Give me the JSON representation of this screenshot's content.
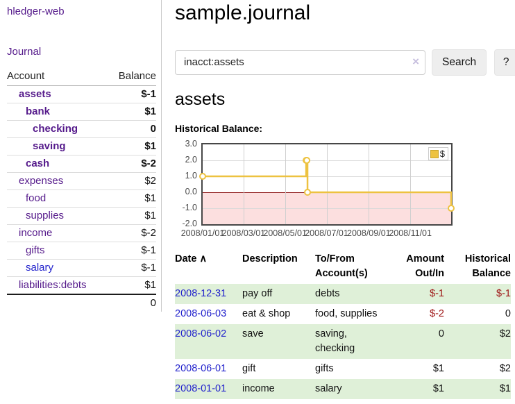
{
  "app": {
    "brand": "hledger-web",
    "nav_journal": "Journal"
  },
  "sidebar": {
    "table_headers": {
      "account": "Account",
      "balance": "Balance"
    },
    "accounts": [
      {
        "name": "assets",
        "level": 1,
        "bold": true,
        "balance": "$-1"
      },
      {
        "name": "bank",
        "level": 2,
        "bold": true,
        "balance": "$1"
      },
      {
        "name": "checking",
        "level": 3,
        "bold": true,
        "balance": "0"
      },
      {
        "name": "saving",
        "level": 3,
        "bold": true,
        "balance": "$1"
      },
      {
        "name": "cash",
        "level": 2,
        "bold": true,
        "balance": "$-2"
      },
      {
        "name": "expenses",
        "level": 1,
        "bold": false,
        "balance": "$2"
      },
      {
        "name": "food",
        "level": 2,
        "bold": false,
        "balance": "$1"
      },
      {
        "name": "supplies",
        "level": 2,
        "bold": false,
        "balance": "$1"
      },
      {
        "name": "income",
        "level": 1,
        "bold": false,
        "balance": "$-2"
      },
      {
        "name": "gifts",
        "level": 2,
        "bold": false,
        "balance": "$-1"
      },
      {
        "name": "salary",
        "level": 2,
        "bold": false,
        "balance": "$-1",
        "unvisited": true
      },
      {
        "name": "liabilities:debts",
        "level": 1,
        "bold": false,
        "balance": "$1"
      }
    ],
    "total": "0"
  },
  "header": {
    "title": "sample.journal"
  },
  "search": {
    "value": "inacct:assets",
    "clear_icon": "×",
    "button": "Search",
    "help_button": "?"
  },
  "account_page": {
    "heading": "assets",
    "chart_label": "Historical Balance:"
  },
  "chart_data": {
    "type": "line",
    "step": true,
    "title": "Historical Balance",
    "series": [
      {
        "name": "$",
        "color": "#edc240",
        "points": [
          [
            "2008-01-01",
            1
          ],
          [
            "2008-06-01",
            2
          ],
          [
            "2008-06-02",
            2
          ],
          [
            "2008-06-03",
            0
          ],
          [
            "2008-12-31",
            -1
          ]
        ]
      }
    ],
    "x_range": [
      "2008-01-01",
      "2008-12-31"
    ],
    "ylim": [
      -2,
      3
    ],
    "y_ticks": [
      "3.0",
      "2.0",
      "1.0",
      "0.0",
      "-1.0",
      "-2.0"
    ],
    "x_ticks": [
      {
        "date": "2008-01-01",
        "label": "2008/01/01"
      },
      {
        "date": "2008-03-01",
        "label": "2008/03/01"
      },
      {
        "date": "2008-05-01",
        "label": "2008/05/01"
      },
      {
        "date": "2008-07-01",
        "label": "2008/07/01"
      },
      {
        "date": "2008-09-01",
        "label": "2008/09/01"
      },
      {
        "date": "2008-11-01",
        "label": "2008/11/01"
      }
    ],
    "legend": {
      "label": "$",
      "position": "top-right"
    },
    "grid": true,
    "negative_region_color": "#fcdfdf",
    "zero_line_color": "#8b1515"
  },
  "register": {
    "headers": [
      "Date",
      "Description",
      "To/From Account(s)",
      "Amount Out/In",
      "Historical Balance"
    ],
    "sort_icon": "∧",
    "rows": [
      {
        "date": "2008-12-31",
        "description": "pay off",
        "accounts": "debts",
        "amount": "$-1",
        "balance": "$-1"
      },
      {
        "date": "2008-06-03",
        "description": "eat & shop",
        "accounts": "food, supplies",
        "amount": "$-2",
        "balance": "0"
      },
      {
        "date": "2008-06-02",
        "description": "save",
        "accounts": "saving, checking",
        "amount": "0",
        "balance": "$2"
      },
      {
        "date": "2008-06-01",
        "description": "gift",
        "accounts": "gifts",
        "amount": "$1",
        "balance": "$2"
      },
      {
        "date": "2008-01-01",
        "description": "income",
        "accounts": "salary",
        "amount": "$1",
        "balance": "$1"
      }
    ]
  },
  "colors": {
    "link_purple": "#551a8b",
    "link_blue": "#2222cc",
    "negative_red": "#a01018",
    "negative_faded": "#c98484",
    "stripe_green": "#dff0d8",
    "chart_gold": "#edc240"
  }
}
